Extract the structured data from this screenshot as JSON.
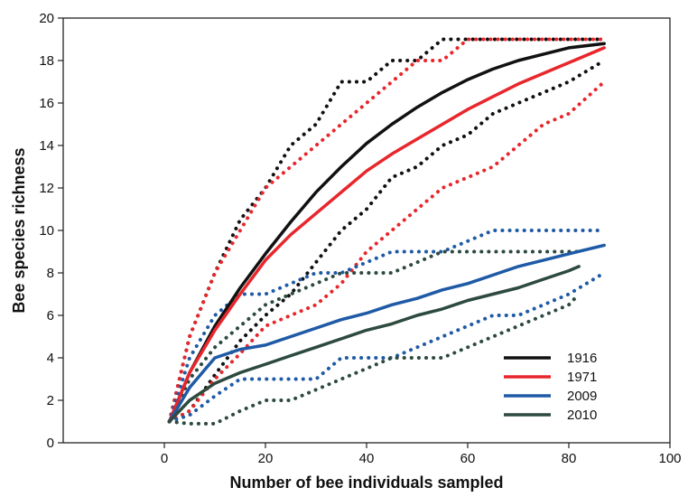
{
  "chart_data": {
    "type": "line",
    "title": "",
    "xlabel": "Number of bee individuals sampled",
    "ylabel": "Bee species richness",
    "xlim": [
      -20,
      100
    ],
    "ylim": [
      0,
      20
    ],
    "xticks": [
      0,
      20,
      40,
      60,
      80,
      100
    ],
    "yticks": [
      0,
      2,
      4,
      6,
      8,
      10,
      12,
      14,
      16,
      18,
      20
    ],
    "grid": false,
    "legend": "bottom-right",
    "series": [
      {
        "name": "1916",
        "color": "#111111",
        "x": [
          1,
          5,
          10,
          15,
          20,
          25,
          30,
          35,
          40,
          45,
          50,
          55,
          60,
          65,
          70,
          75,
          80,
          87
        ],
        "y": [
          1,
          3.3,
          5.5,
          7.3,
          8.9,
          10.4,
          11.8,
          13.0,
          14.1,
          15.0,
          15.8,
          16.5,
          17.1,
          17.6,
          18.0,
          18.3,
          18.6,
          18.8
        ],
        "ci_lower": [
          1,
          1.5,
          3.2,
          4.8,
          6.0,
          7.0,
          8.5,
          10.0,
          11.0,
          12.5,
          13.0,
          14.0,
          14.5,
          15.5,
          16.0,
          16.5,
          17.0,
          18.0
        ],
        "ci_upper": [
          1,
          5.0,
          8.0,
          10.5,
          12.0,
          14.0,
          15.0,
          17.0,
          17.0,
          18.0,
          18.0,
          19.0,
          19.0,
          19.0,
          19.0,
          19.0,
          19.0,
          19.0
        ]
      },
      {
        "name": "1971",
        "color": "#e8262b",
        "x": [
          1,
          5,
          10,
          15,
          20,
          25,
          30,
          35,
          40,
          45,
          50,
          55,
          60,
          65,
          70,
          75,
          80,
          87
        ],
        "y": [
          1,
          3.3,
          5.3,
          7.0,
          8.6,
          9.8,
          10.8,
          11.8,
          12.8,
          13.6,
          14.3,
          15.0,
          15.7,
          16.3,
          16.9,
          17.4,
          17.9,
          18.6
        ],
        "ci_lower": [
          1,
          1.5,
          3.0,
          4.2,
          5.5,
          6.0,
          6.5,
          7.5,
          9.0,
          10.0,
          11.0,
          12.0,
          12.5,
          13.0,
          14.0,
          15.0,
          15.5,
          17.0
        ],
        "ci_upper": [
          1,
          5.0,
          8.0,
          10.0,
          12.0,
          13.0,
          14.0,
          15.0,
          16.0,
          17.0,
          18.0,
          18.0,
          19.0,
          19.0,
          19.0,
          19.0,
          19.0,
          19.0
        ]
      },
      {
        "name": "2009",
        "color": "#1f5aa6",
        "x": [
          1,
          5,
          10,
          15,
          20,
          25,
          30,
          35,
          40,
          45,
          50,
          55,
          60,
          65,
          70,
          75,
          80,
          87
        ],
        "y": [
          1,
          2.6,
          4.0,
          4.4,
          4.6,
          5.0,
          5.4,
          5.8,
          6.1,
          6.5,
          6.8,
          7.2,
          7.5,
          7.9,
          8.3,
          8.6,
          8.9,
          9.3
        ],
        "ci_lower": [
          1,
          1.3,
          2.2,
          3.0,
          3.0,
          3.0,
          3.0,
          4.0,
          4.0,
          4.0,
          4.5,
          5.0,
          5.5,
          6.0,
          6.0,
          6.5,
          7.0,
          8.0
        ],
        "ci_upper": [
          1,
          4.0,
          6.0,
          7.0,
          7.0,
          7.5,
          8.0,
          8.0,
          8.5,
          9.0,
          9.0,
          9.0,
          9.5,
          10.0,
          10.0,
          10.0,
          10.0,
          10.0
        ]
      },
      {
        "name": "2010",
        "color": "#2d4a3e",
        "x": [
          1,
          5,
          10,
          15,
          20,
          25,
          30,
          35,
          40,
          45,
          50,
          55,
          60,
          65,
          70,
          75,
          80,
          82
        ],
        "y": [
          1,
          2.0,
          2.8,
          3.3,
          3.7,
          4.1,
          4.5,
          4.9,
          5.3,
          5.6,
          6.0,
          6.3,
          6.7,
          7.0,
          7.3,
          7.7,
          8.1,
          8.3
        ],
        "ci_lower": [
          1,
          0.9,
          0.9,
          1.5,
          2.0,
          2.0,
          2.5,
          3.0,
          3.5,
          4.0,
          4.0,
          4.0,
          4.5,
          5.0,
          5.5,
          6.0,
          6.5,
          7.0
        ],
        "ci_upper": [
          1,
          3.0,
          4.5,
          5.5,
          6.5,
          7.0,
          7.5,
          8.0,
          8.0,
          8.0,
          8.5,
          9.0,
          9.0,
          9.0,
          9.0,
          9.0,
          9.0,
          9.0
        ]
      }
    ]
  }
}
